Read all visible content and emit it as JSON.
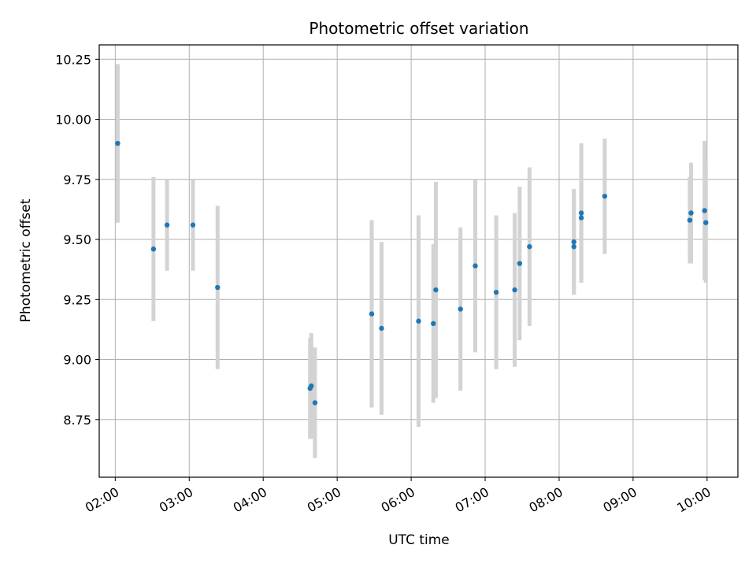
{
  "chart_data": {
    "type": "scatter",
    "title": "Photometric offset variation",
    "xlabel": "UTC time",
    "ylabel": "Photometric offset",
    "x_unit": "UTC hours",
    "xlim": [
      "01:47",
      "10:25"
    ],
    "ylim": [
      8.51,
      10.31
    ],
    "x_ticks": [
      "02:00",
      "03:00",
      "04:00",
      "05:00",
      "06:00",
      "07:00",
      "08:00",
      "09:00",
      "10:00"
    ],
    "y_ticks": [
      "8.75",
      "9.00",
      "9.25",
      "9.50",
      "9.75",
      "10.00",
      "10.25"
    ],
    "grid": true,
    "legend": "none",
    "colors": {
      "marker": "#1f77b4",
      "errorbar": "#d3d3d3",
      "grid": "#b0b0b0"
    },
    "series": [
      {
        "points": [
          {
            "x": "02:02",
            "y": 9.9,
            "err": 0.33
          },
          {
            "x": "02:31",
            "y": 9.46,
            "err": 0.3
          },
          {
            "x": "02:42",
            "y": 9.56,
            "err": 0.19
          },
          {
            "x": "03:03",
            "y": 9.56,
            "err": 0.19
          },
          {
            "x": "03:23",
            "y": 9.3,
            "err": 0.34
          },
          {
            "x": "04:38",
            "y": 8.88,
            "err": 0.21
          },
          {
            "x": "04:39",
            "y": 8.89,
            "err": 0.22
          },
          {
            "x": "04:42",
            "y": 8.82,
            "err": 0.23
          },
          {
            "x": "05:28",
            "y": 9.19,
            "err": 0.39
          },
          {
            "x": "05:36",
            "y": 9.13,
            "err": 0.36
          },
          {
            "x": "06:06",
            "y": 9.16,
            "err": 0.44
          },
          {
            "x": "06:18",
            "y": 9.15,
            "err": 0.33
          },
          {
            "x": "06:20",
            "y": 9.29,
            "err": 0.45
          },
          {
            "x": "06:40",
            "y": 9.21,
            "err": 0.34
          },
          {
            "x": "06:52",
            "y": 9.39,
            "err": 0.36
          },
          {
            "x": "07:09",
            "y": 9.28,
            "err": 0.32
          },
          {
            "x": "07:24",
            "y": 9.29,
            "err": 0.32
          },
          {
            "x": "07:28",
            "y": 9.4,
            "err": 0.32
          },
          {
            "x": "07:36",
            "y": 9.47,
            "err": 0.33
          },
          {
            "x": "08:12",
            "y": 9.47,
            "err": 0.2
          },
          {
            "x": "08:12",
            "y": 9.49,
            "err": 0.22
          },
          {
            "x": "08:18",
            "y": 9.59,
            "err": 0.25
          },
          {
            "x": "08:18",
            "y": 9.61,
            "err": 0.29
          },
          {
            "x": "08:37",
            "y": 9.68,
            "err": 0.24
          },
          {
            "x": "09:46",
            "y": 9.58,
            "err": 0.18
          },
          {
            "x": "09:47",
            "y": 9.61,
            "err": 0.21
          },
          {
            "x": "09:58",
            "y": 9.62,
            "err": 0.29
          },
          {
            "x": "09:59",
            "y": 9.57,
            "err": 0.25
          }
        ]
      }
    ]
  }
}
